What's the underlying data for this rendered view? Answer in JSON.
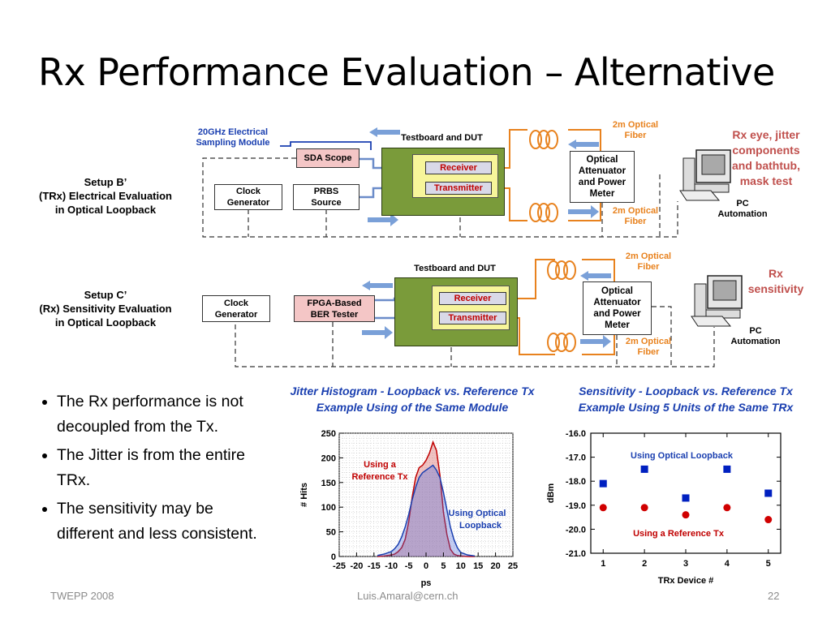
{
  "slide": {
    "title": "Rx Performance Evaluation – Alternative",
    "footer_left": "TWEPP 2008",
    "footer_center": "Luis.Amaral@cern.ch",
    "footer_right": "22"
  },
  "setup_b": {
    "label_line1": "Setup B’",
    "label_line2": "(TRx) Electrical Evaluation",
    "label_line3": "in Optical Loopback",
    "sampling_module_line1": "20GHz Electrical",
    "sampling_module_line2": "Sampling Module",
    "sda_scope": "SDA Scope",
    "clock_gen_line1": "Clock",
    "clock_gen_line2": "Generator",
    "prbs_line1": "PRBS",
    "prbs_line2": "Source",
    "board_label": "Testboard and DUT",
    "receiver": "Receiver",
    "transmitter": "Transmitter",
    "fiber_top_line1": "2m Optical",
    "fiber_top_line2": "Fiber",
    "fiber_bottom_line1": "2m Optical",
    "fiber_bottom_line2": "Fiber",
    "attenuator_line1": "Optical",
    "attenuator_line2": "Attenuator",
    "attenuator_line3": "and Power",
    "attenuator_line4": "Meter",
    "pc_line1": "PC",
    "pc_line2": "Automation",
    "note_line1": "Rx eye, jitter",
    "note_line2": "components",
    "note_line3": "and bathtub,",
    "note_line4": "mask test"
  },
  "setup_c": {
    "label_line1": "Setup C’",
    "label_line2": "(Rx) Sensitivity Evaluation",
    "label_line3": "in Optical Loopback",
    "clock_gen_line1": "Clock",
    "clock_gen_line2": "Generator",
    "ber_line1": "FPGA-Based",
    "ber_line2": "BER Tester",
    "board_label": "Testboard and DUT",
    "receiver": "Receiver",
    "transmitter": "Transmitter",
    "fiber_top_line1": "2m Optical",
    "fiber_top_line2": "Fiber",
    "fiber_bottom_line1": "2m Optical",
    "fiber_bottom_line2": "Fiber",
    "attenuator_line1": "Optical",
    "attenuator_line2": "Attenuator",
    "attenuator_line3": "and Power",
    "attenuator_line4": "Meter",
    "pc_line1": "PC",
    "pc_line2": "Automation",
    "note_line1": "Rx",
    "note_line2": "sensitivity"
  },
  "bullets": [
    "The Rx performance is not decoupled from the Tx.",
    "The Jitter is from the entire TRx.",
    "The sensitivity may be different and less consistent."
  ],
  "jitter_chart_heading": {
    "line1": "Jitter Histogram - Loopback vs. Reference Tx",
    "line2": "Example Using of the Same Module"
  },
  "sensitivity_chart_heading": {
    "line1": "Sensitivity - Loopback vs. Reference Tx",
    "line2": "Example Using 5 Units of the Same TRx"
  },
  "chart_data": [
    {
      "type": "area",
      "xlabel": "ps",
      "ylabel": "# Hits",
      "xlim": [
        -25,
        25
      ],
      "ylim": [
        0,
        250
      ],
      "x_ticks": [
        -25,
        -20,
        -15,
        -10,
        -5,
        0,
        5,
        10,
        15,
        20,
        25
      ],
      "y_ticks": [
        0,
        50,
        100,
        150,
        200,
        250
      ],
      "grid": true,
      "annotations": [
        "Using a Reference Tx",
        "Using Optical Loopback"
      ],
      "x": [
        -14,
        -12,
        -10,
        -9,
        -8,
        -7,
        -6,
        -5,
        -4,
        -3,
        -2,
        -1,
        0,
        1,
        2,
        3,
        4,
        5,
        6,
        7,
        8,
        9,
        10,
        12,
        14
      ],
      "series": [
        {
          "name": "Using a Reference Tx",
          "color": "#c00000",
          "values": [
            0,
            1,
            3,
            5,
            10,
            18,
            35,
            70,
            120,
            160,
            180,
            185,
            195,
            210,
            232,
            215,
            165,
            90,
            45,
            15,
            5,
            2,
            1,
            0,
            0
          ]
        },
        {
          "name": "Using Optical Loopback",
          "color": "#1a3fb0",
          "values": [
            2,
            5,
            10,
            16,
            25,
            40,
            60,
            85,
            115,
            140,
            160,
            170,
            175,
            180,
            185,
            175,
            160,
            130,
            95,
            60,
            35,
            18,
            8,
            3,
            1
          ]
        }
      ]
    },
    {
      "type": "scatter",
      "xlabel": "TRx Device #",
      "ylabel": "dBm",
      "xlim": [
        0.7,
        5.3
      ],
      "ylim": [
        -21.0,
        -16.0
      ],
      "x_ticks": [
        1,
        2,
        3,
        4,
        5
      ],
      "y_ticks": [
        "-16.0",
        "-17.0",
        "-18.0",
        "-19.0",
        "-20.0",
        "-21.0"
      ],
      "grid": false,
      "x": [
        1,
        2,
        3,
        4,
        5
      ],
      "series": [
        {
          "name": "Using Optical Loopback",
          "color": "#0020c0",
          "marker": "square",
          "values": [
            -18.1,
            -17.5,
            -18.7,
            -17.5,
            -18.5
          ]
        },
        {
          "name": "Using a Reference Tx",
          "color": "#d00000",
          "marker": "circle",
          "values": [
            -19.1,
            -19.1,
            -19.4,
            -19.1,
            -19.6
          ]
        }
      ]
    }
  ]
}
